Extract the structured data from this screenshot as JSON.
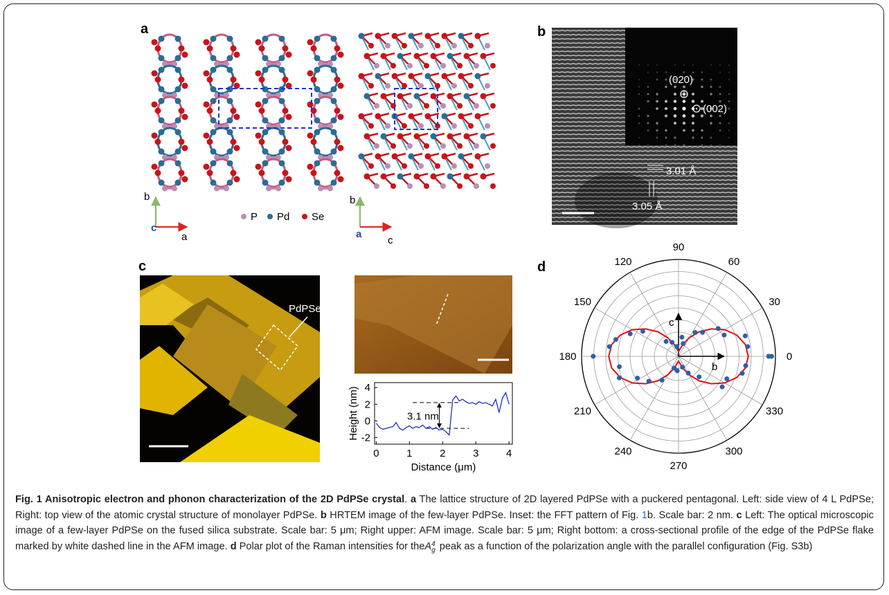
{
  "panels": {
    "a": {
      "label": "a",
      "axes_left": {
        "up": "b",
        "origin": "c",
        "right": "a"
      },
      "legend": [
        "P",
        "Pd",
        "Se"
      ],
      "axes_right": {
        "up": "b",
        "origin": "a",
        "right": "c"
      }
    },
    "b": {
      "label": "b",
      "spots": [
        "(020)",
        "(002)"
      ],
      "spacing_h": "3.01 Å",
      "spacing_v": "3.05 Å"
    },
    "c": {
      "label": "c",
      "flake_label": "PdPSe",
      "profile": {
        "type": "line",
        "xlabel": "Distance (μm)",
        "ylabel": "Height (nm)",
        "annotation": "3.1 nm",
        "x": [
          0,
          0.1,
          0.2,
          0.3,
          0.4,
          0.5,
          0.6,
          0.7,
          0.8,
          0.9,
          1,
          1.1,
          1.2,
          1.3,
          1.4,
          1.5,
          1.6,
          1.7,
          1.8,
          1.9,
          2,
          2.1,
          2.2,
          2.3,
          2.4,
          2.5,
          2.6,
          2.7,
          2.8,
          2.9,
          3,
          3.1,
          3.2,
          3.3,
          3.4,
          3.5,
          3.6,
          3.7,
          3.8,
          3.9,
          4
        ],
        "values": [
          -0.3,
          -0.8,
          -1.0,
          -0.9,
          -0.8,
          -0.7,
          -0.2,
          -0.9,
          -1.1,
          -0.8,
          -0.6,
          -0.9,
          -0.7,
          -0.8,
          -0.5,
          -0.9,
          -0.7,
          -1.0,
          -0.8,
          -1.1,
          -1.0,
          -1.3,
          -1.7,
          2.5,
          3.0,
          2.4,
          2.6,
          2.3,
          2.1,
          2.2,
          2.0,
          2.3,
          2.1,
          2.2,
          2.0,
          1.8,
          2.6,
          1.0,
          2.7,
          3.4,
          2.0
        ],
        "color": "#1f2fd0",
        "dashed_levels": [
          -0.9,
          2.2
        ],
        "xlim": [
          -0.05,
          4.1
        ],
        "ylim": [
          -2.8,
          4.6
        ],
        "xticks": [
          0,
          1,
          2,
          3,
          4
        ],
        "yticks": [
          -2,
          0,
          2,
          4
        ]
      }
    },
    "d": {
      "label": "d",
      "type": "polar",
      "axis_labels": [
        "c",
        "b"
      ],
      "angle_ticks": [
        0,
        30,
        60,
        90,
        120,
        150,
        180,
        210,
        240,
        270,
        300,
        330
      ],
      "rlim": [
        0,
        1
      ],
      "points": {
        "color": "#2f5fa8",
        "angle": [
          0,
          0,
          8,
          17,
          25,
          35,
          45,
          55,
          70,
          80,
          100,
          115,
          130,
          145,
          155,
          165,
          172,
          180,
          190,
          200,
          208,
          220,
          235,
          250,
          265,
          290,
          300,
          315,
          325,
          335,
          345,
          352
        ],
        "r": [
          0.96,
          0.93,
          0.72,
          0.72,
          0.52,
          0.5,
          0.35,
          0.3,
          0.14,
          0.2,
          0.1,
          0.16,
          0.2,
          0.45,
          0.55,
          0.67,
          0.72,
          0.88,
          0.62,
          0.65,
          0.48,
          0.4,
          0.3,
          0.13,
          0.15,
          0.12,
          0.2,
          0.3,
          0.55,
          0.55,
          0.68,
          0.7
        ]
      },
      "fit": {
        "color": "#e01010",
        "angle": [
          0,
          10,
          20,
          30,
          40,
          50,
          60,
          70,
          80,
          90,
          100,
          110,
          120,
          130,
          140,
          150,
          160,
          170,
          180,
          190,
          200,
          210,
          220,
          230,
          240,
          250,
          260,
          270,
          280,
          290,
          300,
          310,
          320,
          330,
          340,
          350
        ],
        "r": [
          0.72,
          0.7,
          0.64,
          0.55,
          0.44,
          0.33,
          0.22,
          0.13,
          0.07,
          0.05,
          0.07,
          0.13,
          0.22,
          0.33,
          0.44,
          0.55,
          0.64,
          0.7,
          0.72,
          0.7,
          0.64,
          0.55,
          0.44,
          0.33,
          0.22,
          0.13,
          0.07,
          0.05,
          0.07,
          0.13,
          0.22,
          0.33,
          0.44,
          0.55,
          0.64,
          0.7
        ]
      }
    }
  },
  "caption": {
    "runs": [
      {
        "text": "Fig. 1 Anisotropic electron and phonon characterization of the 2D PdPSe crystal",
        "style": "bold"
      },
      {
        "text": ". ",
        "style": "plain"
      },
      {
        "text": "a",
        "style": "bold"
      },
      {
        "text": " The lattice structure of 2D layered PdPSe with a puckered pentagonal. Left: side view of 4 L PdPSe; Right: top view of the atomic crystal structure of monolayer PdPSe. ",
        "style": "plain"
      },
      {
        "text": "b",
        "style": "bold"
      },
      {
        "text": " HRTEM image of the few-layer PdPSe. Inset: the FFT pattern of Fig. ",
        "style": "plain"
      },
      {
        "text": "1",
        "style": "link"
      },
      {
        "text": "b. Scale bar: 2 nm. ",
        "style": "plain"
      },
      {
        "text": "c",
        "style": "bold"
      },
      {
        "text": " Left: The optical microscopic image of a few-layer PdPSe on the fused silica substrate. Scale bar: 5 μm; Right upper: AFM image. Scale bar: 5 μm; Right bottom: a cross-sectional profile of the edge of the PdPSe flake marked by white dashed line in the AFM image. ",
        "style": "plain"
      },
      {
        "text": "d",
        "style": "bold"
      },
      {
        "text": " Polar plot of the Raman intensities for the",
        "style": "plain"
      },
      {
        "text": "A",
        "style": "math",
        "sup": "4",
        "sub": "g"
      },
      {
        "text": " peak as a function of the polarization angle with the parallel configuration (Fig. S3b)",
        "style": "plain"
      }
    ]
  }
}
